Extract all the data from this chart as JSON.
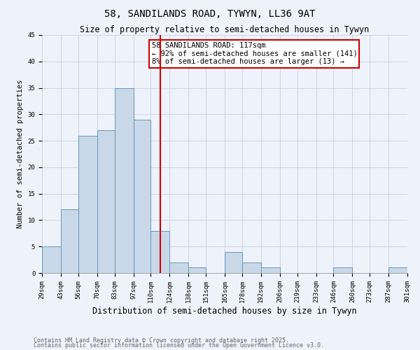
{
  "title": "58, SANDILANDS ROAD, TYWYN, LL36 9AT",
  "subtitle": "Size of property relative to semi-detached houses in Tywyn",
  "xlabel": "Distribution of semi-detached houses by size in Tywyn",
  "ylabel": "Number of semi-detached properties",
  "bin_labels": [
    "29sqm",
    "43sqm",
    "56sqm",
    "70sqm",
    "83sqm",
    "97sqm",
    "110sqm",
    "124sqm",
    "138sqm",
    "151sqm",
    "165sqm",
    "178sqm",
    "192sqm",
    "206sqm",
    "219sqm",
    "233sqm",
    "246sqm",
    "260sqm",
    "273sqm",
    "287sqm",
    "301sqm"
  ],
  "bin_edges": [
    29,
    43,
    56,
    70,
    83,
    97,
    110,
    124,
    138,
    151,
    165,
    178,
    192,
    206,
    219,
    233,
    246,
    260,
    273,
    287,
    301
  ],
  "counts": [
    5,
    12,
    26,
    27,
    35,
    29,
    8,
    2,
    1,
    0,
    4,
    2,
    1,
    0,
    0,
    0,
    1,
    0,
    0,
    1
  ],
  "bar_color": "#c8d8e8",
  "bar_edge_color": "#6699bb",
  "vline_x": 117,
  "vline_color": "#cc0000",
  "annotation_line1": "58 SANDILANDS ROAD: 117sqm",
  "annotation_line2": "← 92% of semi-detached houses are smaller (141)",
  "annotation_line3": "8% of semi-detached houses are larger (13) →",
  "annotation_box_edgecolor": "#cc0000",
  "ylim": [
    0,
    45
  ],
  "yticks": [
    0,
    5,
    10,
    15,
    20,
    25,
    30,
    35,
    40,
    45
  ],
  "background_color": "#eef2fa",
  "grid_color": "#c8d0e0",
  "footer_line1": "Contains HM Land Registry data © Crown copyright and database right 2025.",
  "footer_line2": "Contains public sector information licensed under the Open Government Licence v3.0.",
  "title_fontsize": 10,
  "subtitle_fontsize": 8.5,
  "xlabel_fontsize": 8.5,
  "ylabel_fontsize": 7.5,
  "tick_fontsize": 6.5,
  "footer_fontsize": 6,
  "annot_fontsize": 7.5
}
